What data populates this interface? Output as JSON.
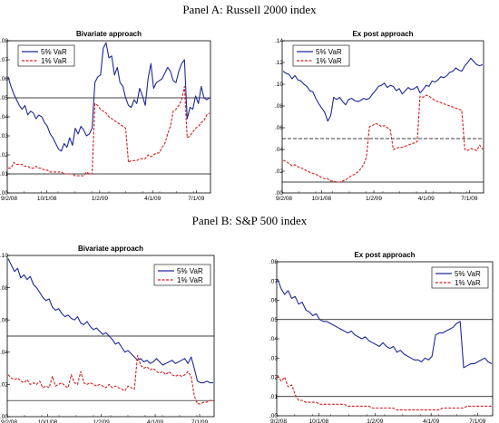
{
  "panels": [
    {
      "title": "Panel A: Russell 2000 index"
    },
    {
      "title": "Panel B: S&P 500 index"
    }
  ],
  "chart_data": [
    {
      "type": "line",
      "title": "Bivariate approach",
      "xlabel": "",
      "ylabel": "",
      "x_ticks": [
        "9/2/08",
        "10/1/08",
        "1/2/09",
        "4/1/09",
        "7/1/09"
      ],
      "y_ticks": [
        ".00",
        ".01",
        ".02",
        ".03",
        ".04",
        ".05",
        ".06",
        ".07",
        ".08"
      ],
      "ylim": [
        0,
        0.08
      ],
      "hlines": [
        {
          "y": 0.05,
          "style": "solid"
        },
        {
          "y": 0.01,
          "style": "solid"
        }
      ],
      "legend": "top-left",
      "colors": {
        "5% VaR": "#1f2a99",
        "1% VaR": "#d42020"
      },
      "series": [
        {
          "name": "5% VaR",
          "values": [
            0.061,
            0.056,
            0.052,
            0.049,
            0.046,
            0.044,
            0.046,
            0.041,
            0.043,
            0.042,
            0.039,
            0.041,
            0.04,
            0.037,
            0.035,
            0.031,
            0.029,
            0.026,
            0.023,
            0.022,
            0.026,
            0.024,
            0.029,
            0.025,
            0.034,
            0.031,
            0.035,
            0.033,
            0.03,
            0.031,
            0.034,
            0.058,
            0.061,
            0.062,
            0.076,
            0.079,
            0.071,
            0.072,
            0.062,
            0.066,
            0.058,
            0.056,
            0.05,
            0.046,
            0.045,
            0.049,
            0.047,
            0.055,
            0.051,
            0.046,
            0.06,
            0.068,
            0.055,
            0.058,
            0.059,
            0.06,
            0.063,
            0.066,
            0.064,
            0.059,
            0.058,
            0.064,
            0.068,
            0.07,
            0.039,
            0.045,
            0.044,
            0.051,
            0.047,
            0.056,
            0.05,
            0.049,
            0.05
          ]
        },
        {
          "name": "1% VaR",
          "values": [
            0.013,
            0.013,
            0.016,
            0.015,
            0.015,
            0.015,
            0.014,
            0.014,
            0.013,
            0.013,
            0.014,
            0.013,
            0.013,
            0.012,
            0.012,
            0.011,
            0.011,
            0.011,
            0.011,
            0.011,
            0.01,
            0.01,
            0.01,
            0.01,
            0.009,
            0.009,
            0.009,
            0.009,
            0.011,
            0.01,
            0.01,
            0.047,
            0.046,
            0.044,
            0.043,
            0.042,
            0.04,
            0.039,
            0.038,
            0.037,
            0.036,
            0.035,
            0.034,
            0.016,
            0.017,
            0.017,
            0.017,
            0.018,
            0.018,
            0.018,
            0.02,
            0.019,
            0.02,
            0.021,
            0.021,
            0.024,
            0.026,
            0.031,
            0.035,
            0.043,
            0.044,
            0.046,
            0.049,
            0.056,
            0.029,
            0.03,
            0.032,
            0.034,
            0.035,
            0.037,
            0.038,
            0.041,
            0.042
          ]
        }
      ]
    },
    {
      "type": "line",
      "title": "Ex post approach",
      "xlabel": "",
      "ylabel": "",
      "x_ticks": [
        "9/2/08",
        "10/1/08",
        "1/2/09",
        "4/1/09",
        "7/1/09"
      ],
      "y_ticks": [
        ".00",
        ".02",
        ".04",
        ".06",
        ".08",
        ".10",
        ".12",
        ".14"
      ],
      "ylim": [
        0,
        0.14
      ],
      "hlines": [
        {
          "y": 0.05,
          "style": "dashed"
        },
        {
          "y": 0.01,
          "style": "solid"
        }
      ],
      "legend": "top-left",
      "colors": {
        "5% VaR": "#1f2a99",
        "1% VaR": "#d42020"
      },
      "series": [
        {
          "name": "5% VaR",
          "values": [
            0.112,
            0.11,
            0.109,
            0.105,
            0.108,
            0.104,
            0.103,
            0.1,
            0.098,
            0.094,
            0.093,
            0.087,
            0.082,
            0.078,
            0.074,
            0.066,
            0.071,
            0.088,
            0.086,
            0.088,
            0.084,
            0.081,
            0.086,
            0.087,
            0.085,
            0.084,
            0.085,
            0.087,
            0.086,
            0.087,
            0.091,
            0.094,
            0.098,
            0.099,
            0.101,
            0.097,
            0.099,
            0.098,
            0.094,
            0.096,
            0.091,
            0.094,
            0.097,
            0.095,
            0.096,
            0.098,
            0.092,
            0.095,
            0.099,
            0.098,
            0.103,
            0.102,
            0.104,
            0.107,
            0.106,
            0.108,
            0.111,
            0.112,
            0.115,
            0.113,
            0.112,
            0.117,
            0.12,
            0.124,
            0.121,
            0.118,
            0.117,
            0.118
          ]
        },
        {
          "name": "1% VaR",
          "values": [
            0.03,
            0.029,
            0.027,
            0.025,
            0.026,
            0.024,
            0.023,
            0.022,
            0.02,
            0.019,
            0.018,
            0.017,
            0.016,
            0.014,
            0.013,
            0.013,
            0.011,
            0.011,
            0.01,
            0.01,
            0.011,
            0.012,
            0.014,
            0.016,
            0.017,
            0.019,
            0.022,
            0.026,
            0.033,
            0.061,
            0.062,
            0.064,
            0.063,
            0.061,
            0.062,
            0.06,
            0.058,
            0.04,
            0.041,
            0.042,
            0.042,
            0.043,
            0.044,
            0.045,
            0.046,
            0.047,
            0.089,
            0.088,
            0.09,
            0.089,
            0.087,
            0.085,
            0.084,
            0.083,
            0.082,
            0.081,
            0.08,
            0.079,
            0.078,
            0.077,
            0.076,
            0.04,
            0.039,
            0.041,
            0.04,
            0.039,
            0.044,
            0.04
          ]
        }
      ]
    },
    {
      "type": "line",
      "title": "Bivariate approach",
      "xlabel": "",
      "ylabel": "",
      "x_ticks": [
        "9/2/08",
        "10/1/08",
        "1/2/09",
        "4/1/09",
        "7/1/09"
      ],
      "y_ticks": [
        ".00",
        ".02",
        ".04",
        ".06",
        ".08",
        ".10"
      ],
      "ylim": [
        0,
        0.1
      ],
      "hlines": [
        {
          "y": 0.05,
          "style": "solid"
        },
        {
          "y": 0.01,
          "style": "solid"
        }
      ],
      "legend": "top-right",
      "colors": {
        "5% VaR": "#1f2a99",
        "1% VaR": "#d42020"
      },
      "series": [
        {
          "name": "5% VaR",
          "values": [
            0.098,
            0.094,
            0.09,
            0.092,
            0.086,
            0.088,
            0.085,
            0.087,
            0.082,
            0.08,
            0.077,
            0.074,
            0.072,
            0.073,
            0.068,
            0.066,
            0.067,
            0.064,
            0.062,
            0.063,
            0.061,
            0.06,
            0.062,
            0.058,
            0.057,
            0.059,
            0.056,
            0.054,
            0.055,
            0.053,
            0.051,
            0.052,
            0.05,
            0.048,
            0.045,
            0.046,
            0.043,
            0.04,
            0.041,
            0.039,
            0.037,
            0.035,
            0.036,
            0.034,
            0.035,
            0.033,
            0.034,
            0.036,
            0.034,
            0.032,
            0.033,
            0.034,
            0.035,
            0.033,
            0.034,
            0.035,
            0.036,
            0.033,
            0.037,
            0.03,
            0.022,
            0.021,
            0.021,
            0.022,
            0.021,
            0.021
          ]
        },
        {
          "name": "1% VaR",
          "values": [
            0.026,
            0.024,
            0.023,
            0.024,
            0.022,
            0.021,
            0.023,
            0.02,
            0.021,
            0.02,
            0.022,
            0.018,
            0.019,
            0.018,
            0.025,
            0.019,
            0.02,
            0.021,
            0.019,
            0.018,
            0.026,
            0.021,
            0.02,
            0.028,
            0.021,
            0.02,
            0.021,
            0.02,
            0.019,
            0.02,
            0.019,
            0.018,
            0.02,
            0.018,
            0.019,
            0.018,
            0.017,
            0.016,
            0.019,
            0.018,
            0.017,
            0.038,
            0.032,
            0.03,
            0.031,
            0.029,
            0.03,
            0.028,
            0.027,
            0.028,
            0.026,
            0.028,
            0.026,
            0.025,
            0.026,
            0.025,
            0.026,
            0.028,
            0.025,
            0.013,
            0.008,
            0.008,
            0.009,
            0.009,
            0.01,
            0.01
          ]
        }
      ]
    },
    {
      "type": "line",
      "title": "Ex post approach",
      "xlabel": "",
      "ylabel": "",
      "x_ticks": [
        "9/2/08",
        "10/1/08",
        "1/2/09",
        "4/1/09",
        "7/1/09"
      ],
      "y_ticks": [
        ".00",
        ".01",
        ".02",
        ".03",
        ".04",
        ".05",
        ".06",
        ".07",
        ".08"
      ],
      "ylim": [
        0,
        0.08
      ],
      "hlines": [
        {
          "y": 0.05,
          "style": "solid"
        },
        {
          "y": 0.01,
          "style": "solid"
        }
      ],
      "legend": "top-right",
      "colors": {
        "5% VaR": "#1f2a99",
        "1% VaR": "#d42020"
      },
      "series": [
        {
          "name": "5% VaR",
          "values": [
            0.071,
            0.066,
            0.063,
            0.065,
            0.061,
            0.062,
            0.058,
            0.059,
            0.055,
            0.054,
            0.052,
            0.053,
            0.05,
            0.049,
            0.049,
            0.048,
            0.047,
            0.046,
            0.045,
            0.044,
            0.043,
            0.044,
            0.042,
            0.041,
            0.04,
            0.041,
            0.039,
            0.038,
            0.037,
            0.036,
            0.038,
            0.036,
            0.035,
            0.036,
            0.033,
            0.034,
            0.032,
            0.031,
            0.03,
            0.029,
            0.029,
            0.028,
            0.03,
            0.029,
            0.031,
            0.042,
            0.043,
            0.043,
            0.044,
            0.045,
            0.046,
            0.048,
            0.049,
            0.025,
            0.026,
            0.027,
            0.027,
            0.028,
            0.029,
            0.03,
            0.028,
            0.027
          ]
        },
        {
          "name": "1% VaR",
          "values": [
            0.021,
            0.018,
            0.02,
            0.015,
            0.016,
            0.011,
            0.008,
            0.008,
            0.007,
            0.007,
            0.007,
            0.007,
            0.006,
            0.006,
            0.006,
            0.006,
            0.006,
            0.006,
            0.006,
            0.006,
            0.005,
            0.005,
            0.005,
            0.005,
            0.005,
            0.005,
            0.005,
            0.004,
            0.004,
            0.004,
            0.004,
            0.004,
            0.004,
            0.004,
            0.003,
            0.003,
            0.003,
            0.003,
            0.003,
            0.003,
            0.003,
            0.003,
            0.003,
            0.003,
            0.003,
            0.003,
            0.003,
            0.004,
            0.004,
            0.004,
            0.004,
            0.004,
            0.004,
            0.004,
            0.005,
            0.005,
            0.005,
            0.005,
            0.005,
            0.005,
            0.005,
            0.005
          ]
        }
      ]
    }
  ]
}
